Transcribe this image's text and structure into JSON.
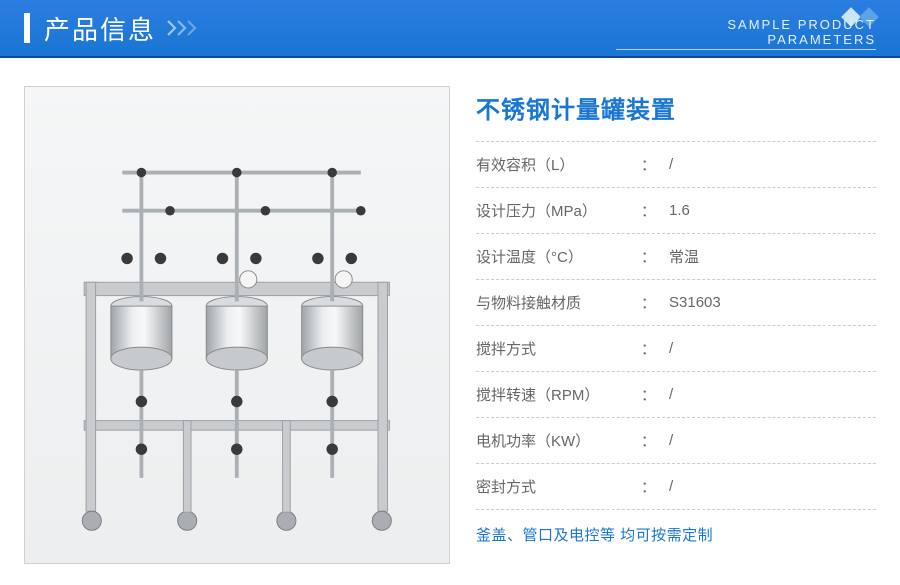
{
  "header": {
    "title": "产品信息",
    "subtitle": "SAMPLE PRODUCT PARAMETERS"
  },
  "product": {
    "title": "不锈钢计量罐装置",
    "custom_note": "釜盖、管口及电控等 均可按需定制"
  },
  "specs": [
    {
      "label": "有效容积（L）",
      "value": "/"
    },
    {
      "label": "设计压力（MPa）",
      "value": "1.6"
    },
    {
      "label": "设计温度（°C）",
      "value": "常温"
    },
    {
      "label": "与物料接触材质",
      "value": "S31603"
    },
    {
      "label": "搅拌方式",
      "value": "/"
    },
    {
      "label": "搅拌转速（RPM）",
      "value": "/"
    },
    {
      "label": "电机功率（KW）",
      "value": "/"
    },
    {
      "label": "密封方式",
      "value": "/"
    }
  ],
  "colors": {
    "header_bg": "#1976d2",
    "accent": "#1976d2",
    "text_muted": "#666666",
    "divider": "#cccccc"
  }
}
